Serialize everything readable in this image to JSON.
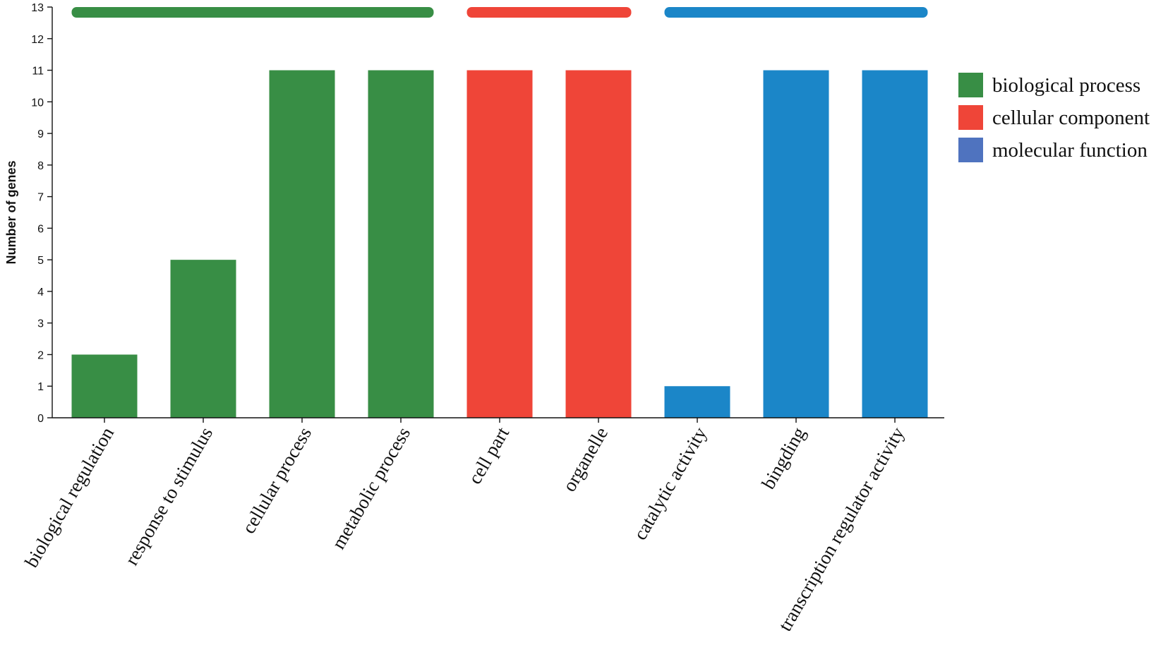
{
  "chart_data": {
    "type": "bar",
    "title": "",
    "xlabel": "",
    "ylabel": "Number of genes",
    "ylim": [
      0,
      13
    ],
    "yticks": [
      0,
      1,
      2,
      3,
      4,
      5,
      6,
      7,
      8,
      9,
      10,
      11,
      12,
      13
    ],
    "grid": false,
    "legend_position": "right",
    "categories": [
      "biological regulation",
      "response to stimulus",
      "cellular process",
      "metabolic process",
      "cell part",
      "organelle",
      "catalytic activity",
      "bingding",
      "transcription regulator activity"
    ],
    "values": [
      2,
      5,
      11,
      11,
      11,
      11,
      1,
      11,
      11
    ],
    "groups": [
      "biological process",
      "biological process",
      "biological process",
      "biological process",
      "cellular component",
      "cellular component",
      "molecular function",
      "molecular function",
      "molecular function"
    ],
    "series": [
      {
        "name": "biological process",
        "color": "#388e45",
        "categories": [
          "biological regulation",
          "response to stimulus",
          "cellular process",
          "metabolic process"
        ]
      },
      {
        "name": "cellular component",
        "color": "#ef4538",
        "categories": [
          "cell part",
          "organelle"
        ]
      },
      {
        "name": "molecular function",
        "color": "#1b86c8",
        "legend_color": "#4f73bf",
        "categories": [
          "catalytic activity",
          "bingding",
          "transcription regulator activity"
        ]
      }
    ]
  }
}
